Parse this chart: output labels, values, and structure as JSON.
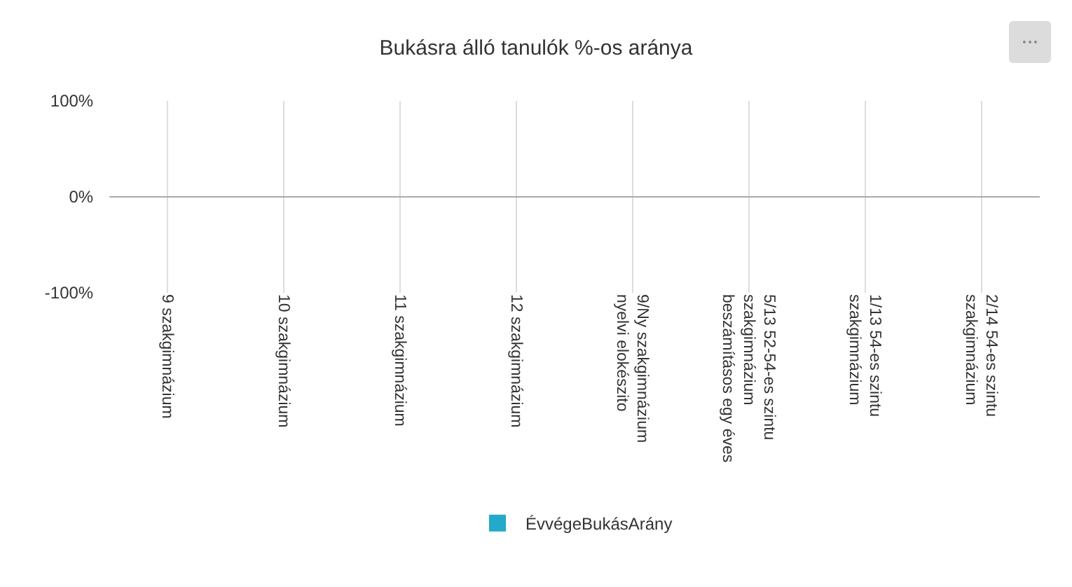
{
  "chart_data": {
    "type": "bar",
    "title": "Bukásra álló tanulók %-os aránya",
    "categories": [
      "9 szakgimnázium",
      "10 szakgimnázium",
      "11 szakgimnázium",
      "12 szakgimnázium",
      "9/Ny szakgimnázium nyelvi elokészito",
      "5/13 52-54-es szintu szakgimnázium beszámításos egy éves",
      "1/13 54-es szintu szakgimnázium",
      "2/14 54-es szintu szakgimnázium"
    ],
    "series": [
      {
        "name": "ÉvvégeBukásArány",
        "color": "#23a9c9",
        "values": [
          0,
          0,
          0,
          0,
          0,
          0,
          0,
          0
        ]
      }
    ],
    "ylim": [
      -100,
      100
    ],
    "yticks": [
      {
        "value": -100,
        "label": "-100%"
      },
      {
        "value": 0,
        "label": "0%"
      },
      {
        "value": 100,
        "label": "100%"
      }
    ],
    "grid": true,
    "legend": "bottom"
  }
}
